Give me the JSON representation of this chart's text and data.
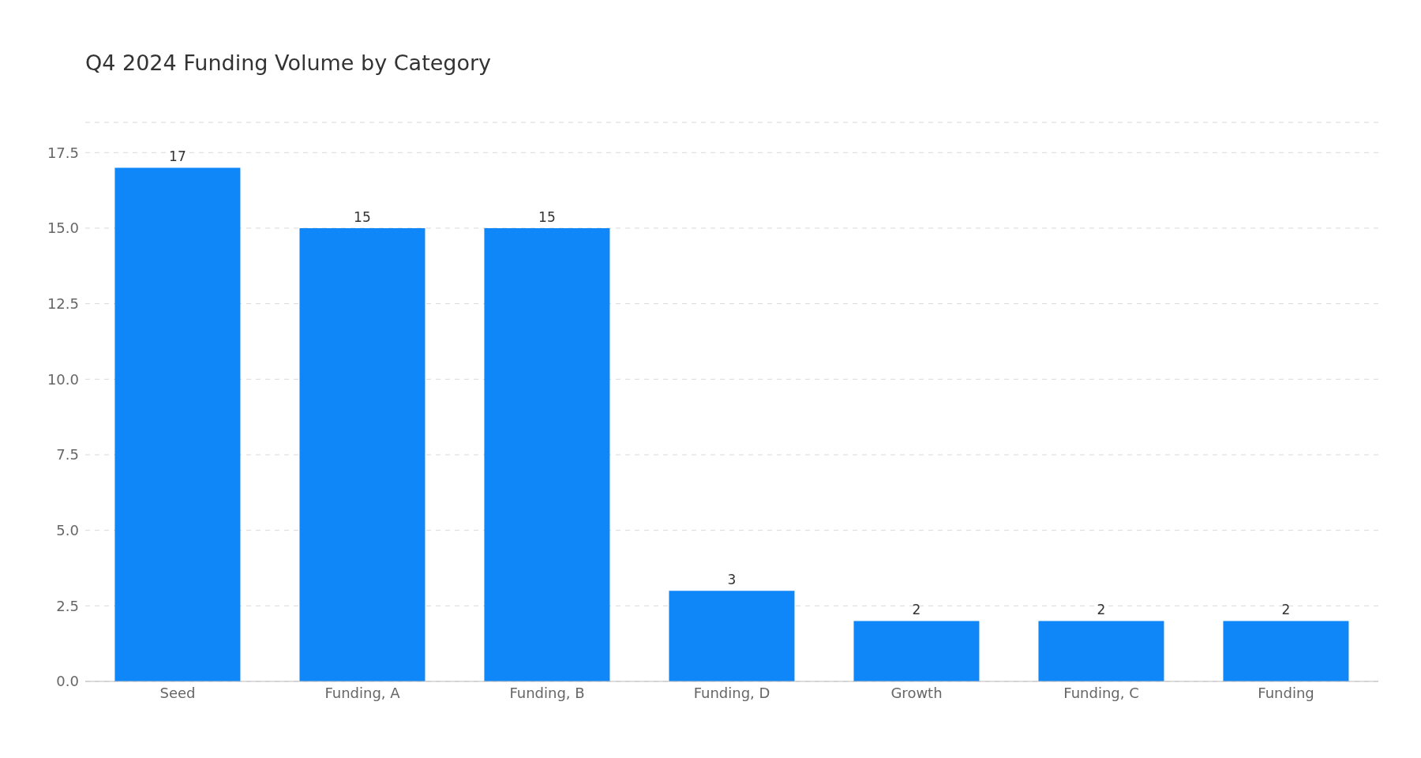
{
  "chart_data": {
    "type": "bar",
    "title": "Q4 2024 Funding Volume by Category",
    "categories": [
      "Seed",
      "Funding, A",
      "Funding, B",
      "Funding, D",
      "Growth",
      "Funding, C",
      "Funding"
    ],
    "values": [
      17,
      15,
      15,
      3,
      2,
      2,
      2
    ],
    "color": "#1087f8",
    "ylim": [
      0,
      18.5
    ],
    "yticks": [
      {
        "value": 0,
        "label": "0.0"
      },
      {
        "value": 2.5,
        "label": "2.5"
      },
      {
        "value": 5,
        "label": "5.0"
      },
      {
        "value": 7.5,
        "label": "7.5"
      },
      {
        "value": 10,
        "label": "10.0"
      },
      {
        "value": 12.5,
        "label": "12.5"
      },
      {
        "value": 15,
        "label": "15.0"
      },
      {
        "value": 17.5,
        "label": "17.5"
      }
    ],
    "grid": "y",
    "data_labels": true,
    "legend": false
  }
}
